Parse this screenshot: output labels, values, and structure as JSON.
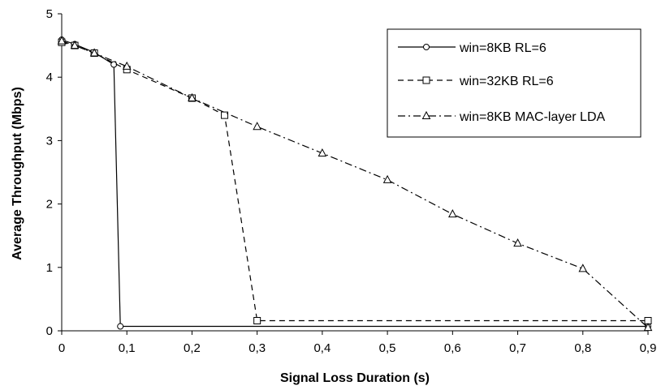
{
  "chart_data": {
    "type": "line",
    "title": "",
    "xlabel": "Signal Loss Duration (s)",
    "ylabel": "Average Throughput (Mbps)",
    "xlim": [
      0,
      0.9
    ],
    "ylim": [
      0,
      5
    ],
    "x_ticks": [
      "0",
      "0,1",
      "0,2",
      "0,3",
      "0,4",
      "0,5",
      "0,6",
      "0,7",
      "0,8",
      "0,9"
    ],
    "y_ticks": [
      "0",
      "1",
      "2",
      "3",
      "4",
      "5"
    ],
    "grid": false,
    "legend_position": "top-right",
    "series": [
      {
        "name": "win=8KB RL=6",
        "line_style": "solid",
        "marker": "circle",
        "points": [
          [
            0,
            4.59
          ],
          [
            0.02,
            4.52
          ],
          [
            0.05,
            4.39
          ],
          [
            0.08,
            4.2
          ],
          [
            0.09,
            0.07
          ],
          [
            0.9,
            0.07
          ]
        ]
      },
      {
        "name": "win=32KB RL=6",
        "line_style": "dashed",
        "marker": "square",
        "points": [
          [
            0,
            4.55
          ],
          [
            0.02,
            4.5
          ],
          [
            0.05,
            4.38
          ],
          [
            0.1,
            4.12
          ],
          [
            0.2,
            3.67
          ],
          [
            0.25,
            3.4
          ],
          [
            0.3,
            0.16
          ],
          [
            0.9,
            0.16
          ]
        ]
      },
      {
        "name": "win=8KB MAC-layer LDA",
        "line_style": "dash-dot",
        "marker": "triangle",
        "points": [
          [
            0,
            4.57
          ],
          [
            0.02,
            4.5
          ],
          [
            0.05,
            4.38
          ],
          [
            0.1,
            4.17
          ],
          [
            0.2,
            3.67
          ],
          [
            0.3,
            3.22
          ],
          [
            0.4,
            2.8
          ],
          [
            0.5,
            2.38
          ],
          [
            0.6,
            1.84
          ],
          [
            0.7,
            1.38
          ],
          [
            0.8,
            0.98
          ],
          [
            0.9,
            0.05
          ]
        ]
      }
    ]
  }
}
